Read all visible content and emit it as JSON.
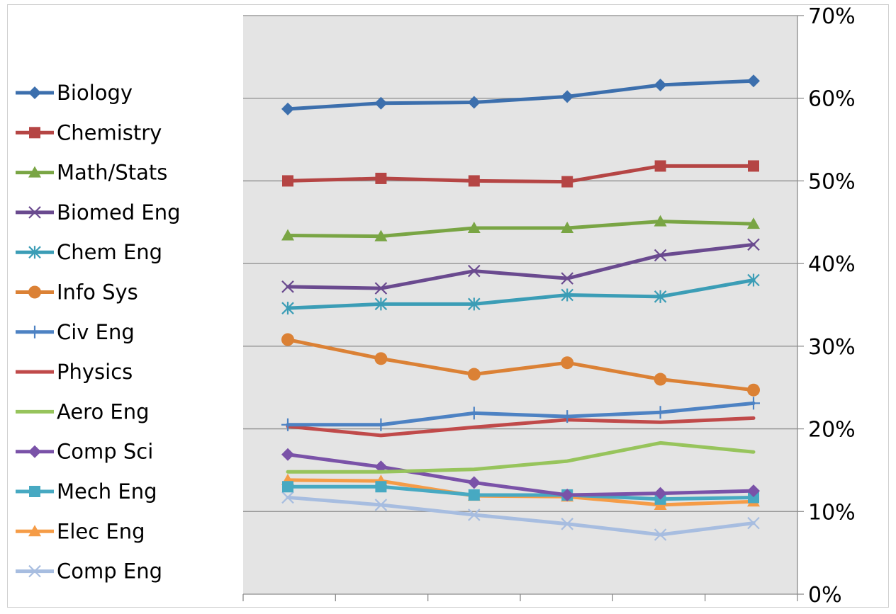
{
  "chart_data": {
    "type": "line",
    "title": "",
    "xlabel": "",
    "ylabel": "",
    "ylim": [
      0,
      70
    ],
    "y_axis_side": "right",
    "y_ticks": [
      "0%",
      "10%",
      "20%",
      "30%",
      "40%",
      "50%",
      "60%",
      "70%"
    ],
    "grid": true,
    "legend_position": "left",
    "plot_background": "#e4e4e4",
    "x": [
      1,
      2,
      3,
      4,
      5,
      6
    ],
    "series": [
      {
        "name": "Biology",
        "color": "#3c6fad",
        "marker": "diamond",
        "values": [
          58.7,
          59.4,
          59.5,
          60.2,
          61.6,
          62.1
        ]
      },
      {
        "name": "Chemistry",
        "color": "#b54544",
        "marker": "square",
        "values": [
          50.0,
          50.3,
          50.0,
          49.9,
          51.8,
          51.8
        ]
      },
      {
        "name": "Math/Stats",
        "color": "#79a544",
        "marker": "triangle",
        "values": [
          43.4,
          43.3,
          44.3,
          44.3,
          45.1,
          44.8
        ]
      },
      {
        "name": "Biomed Eng",
        "color": "#6a4a8f",
        "marker": "x",
        "values": [
          37.2,
          37.0,
          39.1,
          38.2,
          41.0,
          42.3
        ]
      },
      {
        "name": "Chem Eng",
        "color": "#3b9db6",
        "marker": "star",
        "values": [
          34.6,
          35.1,
          35.1,
          36.2,
          36.0,
          38.0
        ]
      },
      {
        "name": "Info Sys",
        "color": "#db8135",
        "marker": "circle",
        "values": [
          30.8,
          28.5,
          26.6,
          28.0,
          26.0,
          24.7
        ]
      },
      {
        "name": "Civ Eng",
        "color": "#4d82c3",
        "marker": "plus",
        "values": [
          20.5,
          20.5,
          21.9,
          21.5,
          22.0,
          23.1
        ]
      },
      {
        "name": "Physics",
        "color": "#c04a4a",
        "marker": "none",
        "values": [
          20.3,
          19.2,
          20.2,
          21.1,
          20.8,
          21.3
        ]
      },
      {
        "name": "Aero Eng",
        "color": "#97c45c",
        "marker": "none",
        "values": [
          14.8,
          14.8,
          15.1,
          16.1,
          18.3,
          17.2
        ]
      },
      {
        "name": "Comp Sci",
        "color": "#7a52a8",
        "marker": "diamond",
        "values": [
          16.9,
          15.4,
          13.5,
          12.0,
          12.2,
          12.5
        ]
      },
      {
        "name": "Mech Eng",
        "color": "#47a9c2",
        "marker": "square",
        "values": [
          13.0,
          13.0,
          12.0,
          12.0,
          11.5,
          11.7
        ]
      },
      {
        "name": "Elec Eng",
        "color": "#f59c47",
        "marker": "triangle",
        "values": [
          13.8,
          13.7,
          11.9,
          11.8,
          10.8,
          11.2
        ]
      },
      {
        "name": "Comp Eng",
        "color": "#a7bde0",
        "marker": "x",
        "values": [
          11.7,
          10.8,
          9.6,
          8.5,
          7.2,
          8.6
        ]
      }
    ]
  }
}
